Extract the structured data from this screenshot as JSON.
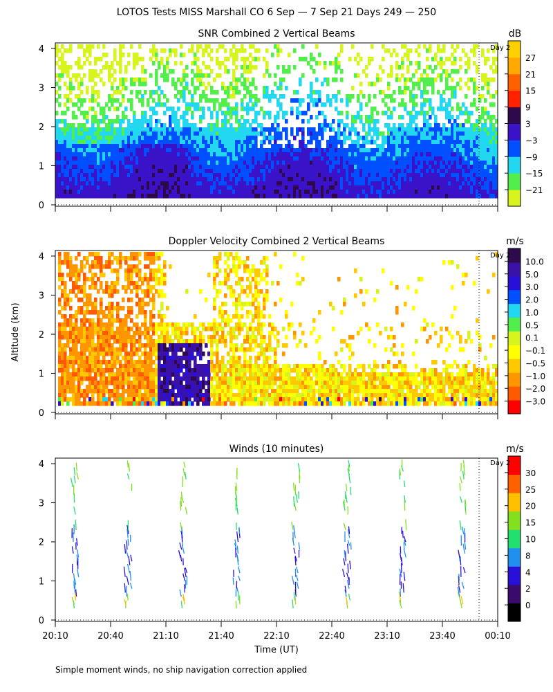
{
  "figure": {
    "title": "LOTOS Tests MISS Marshall CO   6 Sep —  7 Sep 21 Days 249 — 250",
    "ylabel": "Altitude (km)",
    "xlabel": "Time (UT)",
    "footnote": "Simple moment winds, no ship navigation correction applied",
    "day_marker": "Day 2"
  },
  "colors": {
    "snr_scale": [
      "#d8f41e",
      "#52ee4c",
      "#22d8f0",
      "#0050ff",
      "#3a12c8",
      "#2e0a4c",
      "#ff2000",
      "#ff6000",
      "#ffa800",
      "#ffd000"
    ],
    "vel_scale": [
      "#ff0000",
      "#ff5a00",
      "#ff9600",
      "#ffc800",
      "#ffff00",
      "#d8f41e",
      "#52ee4c",
      "#22d8f0",
      "#0050ff",
      "#2810d8",
      "#3a12a8",
      "#2e0a4c"
    ],
    "wind_scale": [
      "#000000",
      "#3a0a6c",
      "#2810d8",
      "#2090f0",
      "#22e070",
      "#82e01e",
      "#ffc000",
      "#ff6000",
      "#ff0000"
    ]
  },
  "chart_data": [
    {
      "type": "heatmap",
      "title": "SNR Combined 2 Vertical Beams",
      "unit": "dB",
      "xlabel": "Time (UT)",
      "ylabel": "Altitude (km)",
      "x_ticks": [
        "20:10",
        "20:40",
        "21:10",
        "21:40",
        "22:10",
        "22:40",
        "23:10",
        "23:40",
        "00:10"
      ],
      "y_ticks": [
        0,
        1,
        2,
        3,
        4
      ],
      "ylim": [
        0,
        4
      ],
      "colorbar_labels": [
        "27",
        "21",
        "15",
        "9",
        "3",
        "−3",
        "−9",
        "−15",
        "−21"
      ],
      "summary": "Highest SNR (−3 to 9 dB) below 1.5 km; decreasing to −21 dB above 2 km; gaps (no data) mostly above 2.5 km"
    },
    {
      "type": "heatmap",
      "title": "Doppler Velocity Combined 2 Vertical Beams",
      "unit": "m/s",
      "xlabel": "Time (UT)",
      "ylabel": "Altitude (km)",
      "x_ticks": [
        "20:10",
        "20:40",
        "21:10",
        "21:40",
        "22:10",
        "22:40",
        "23:10",
        "23:40",
        "00:10"
      ],
      "y_ticks": [
        0,
        1,
        2,
        3,
        4
      ],
      "ylim": [
        0,
        4
      ],
      "colorbar_labels": [
        "10.0",
        "5.0",
        "3.0",
        "2.0",
        "1.0",
        "0.5",
        "0.1",
        "−0.1",
        "−0.5",
        "−1.0",
        "−2.0",
        "−3.0"
      ],
      "summary": "Downward (−1 to −3 m/s) motion 20:10–21:10 below 2.5 km; upward (2 to 5 m/s) near 21:10–21:40 around 1 km"
    },
    {
      "type": "scatter",
      "title": "Winds (10 minutes)",
      "unit": "m/s",
      "xlabel": "Time (UT)",
      "ylabel": "Altitude (km)",
      "x_ticks": [
        "20:10",
        "20:40",
        "21:10",
        "21:40",
        "22:10",
        "22:40",
        "23:10",
        "23:40",
        "00:10"
      ],
      "y_ticks": [
        0,
        1,
        2,
        3,
        4
      ],
      "ylim": [
        0,
        4
      ],
      "colorbar_labels": [
        "30",
        "25",
        "20",
        "15",
        "10",
        "8",
        "4",
        "2",
        "0"
      ],
      "profile_times": [
        "20:30",
        "20:55",
        "21:20",
        "21:45",
        "22:20",
        "22:45",
        "23:20",
        "23:55"
      ],
      "summary": "Wind barb profiles every ~25 min; speeds mostly 8–15 m/s"
    }
  ]
}
